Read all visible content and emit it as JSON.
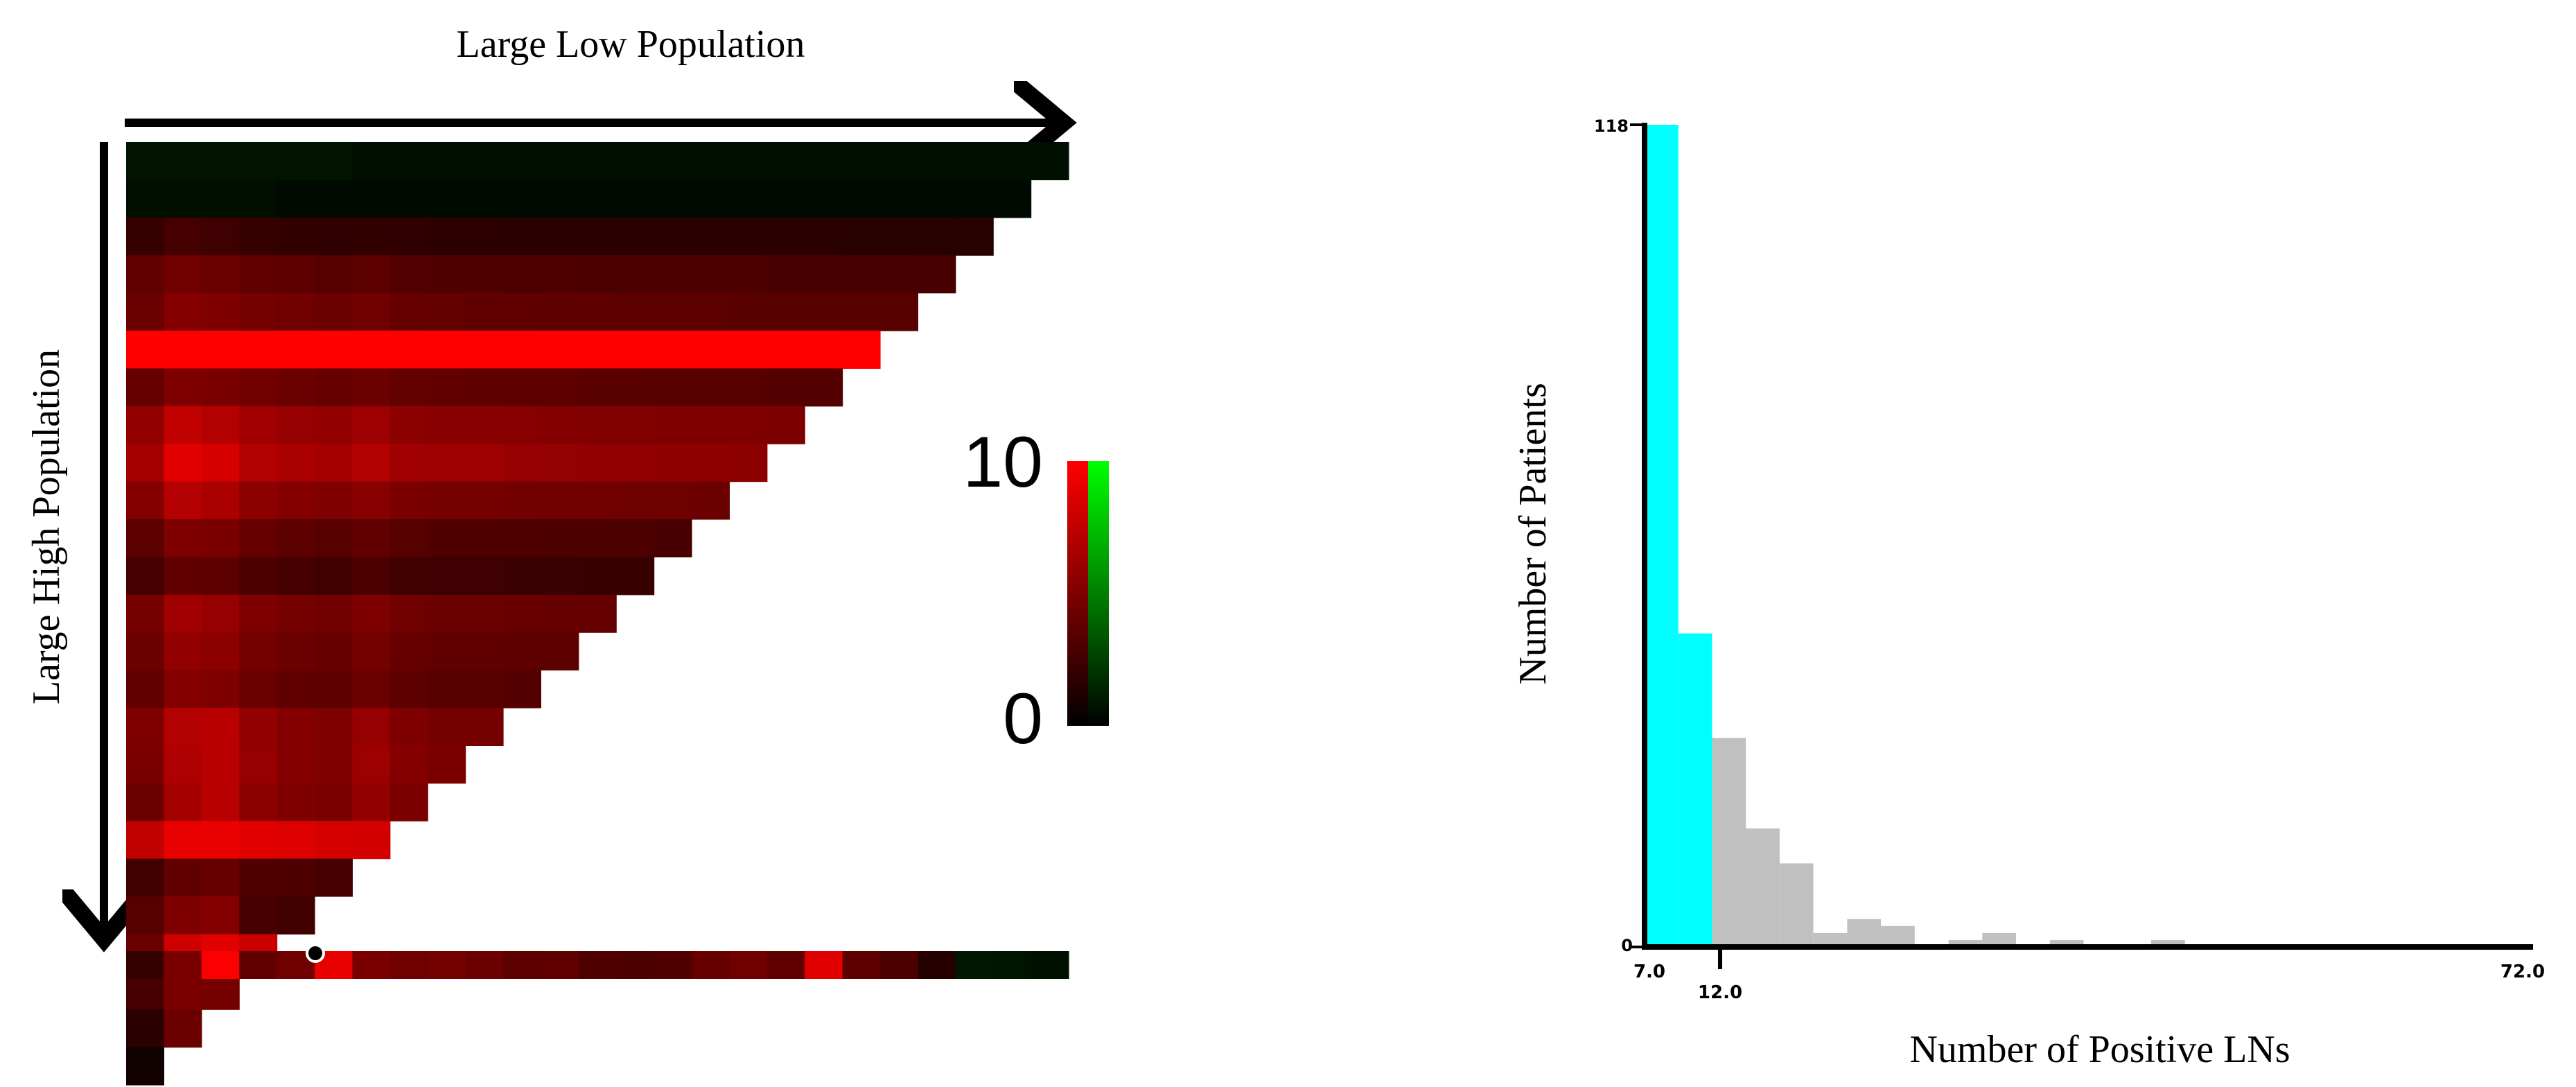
{
  "chart_data": [
    {
      "type": "heatmap",
      "title": "Large Low Population",
      "xlabel": "Large Low Population",
      "ylabel": "Large High Population",
      "colorbar": {
        "min_label": "0",
        "max_label": "10",
        "min": 0,
        "max": 10,
        "colors": [
          "#000000",
          "#ff0000",
          "#00ff00"
        ]
      },
      "rows": [
        [
          0.4,
          0.4,
          0.4,
          0.4,
          0.4,
          0.4,
          0.3,
          0.3,
          0.3,
          0.3,
          0.3,
          0.3,
          0.3,
          0.3,
          0.3,
          0.3,
          0.3,
          0.3,
          0.3,
          0.3,
          0.3,
          0.3,
          0.3,
          0.3,
          0.3
        ],
        [
          0.3,
          0.3,
          0.3,
          0.3,
          0.2,
          0.2,
          0.2,
          0.2,
          0.2,
          0.2,
          0.2,
          0.2,
          0.2,
          0.2,
          0.2,
          0.2,
          0.2,
          0.2,
          0.2,
          0.2,
          0.2,
          0.2,
          0.2,
          0.2
        ],
        [
          1.6,
          2.2,
          1.9,
          1.6,
          1.5,
          1.4,
          1.5,
          1.4,
          1.3,
          1.3,
          1.2,
          1.2,
          1.2,
          1.2,
          1.2,
          1.2,
          1.2,
          1.2,
          1.2,
          1.1,
          1.1,
          1.1,
          1.1
        ],
        [
          3.2,
          3.8,
          3.6,
          3.2,
          3.0,
          2.8,
          3.0,
          2.7,
          2.6,
          2.6,
          2.5,
          2.5,
          2.4,
          2.4,
          2.4,
          2.4,
          2.4,
          2.3,
          2.3,
          2.3,
          2.3,
          2.2
        ],
        [
          3.6,
          4.6,
          4.4,
          4.0,
          3.8,
          3.6,
          3.8,
          3.4,
          3.3,
          3.2,
          3.2,
          3.1,
          3.1,
          3.0,
          3.0,
          3.0,
          2.9,
          2.9,
          2.9,
          2.8,
          2.8
        ],
        [
          10,
          10,
          10,
          10,
          10,
          10,
          10,
          10,
          10,
          10,
          10,
          10,
          10,
          10,
          10,
          10,
          10,
          10,
          10,
          10
        ],
        [
          3.4,
          4.4,
          4.2,
          3.8,
          3.6,
          3.4,
          3.6,
          3.3,
          3.2,
          3.1,
          3.0,
          3.0,
          2.9,
          2.9,
          2.8,
          2.8,
          2.8,
          2.7,
          2.7
        ],
        [
          5.2,
          7.2,
          6.6,
          5.8,
          5.4,
          5.2,
          5.6,
          5.0,
          4.8,
          4.8,
          4.7,
          4.6,
          4.5,
          4.5,
          4.4,
          4.4,
          4.4,
          4.3
        ],
        [
          6.0,
          8.6,
          8.2,
          6.6,
          6.2,
          6.0,
          6.6,
          5.8,
          5.6,
          5.6,
          5.4,
          5.3,
          5.2,
          5.2,
          5.1,
          5.1,
          5.0
        ],
        [
          4.6,
          6.6,
          6.2,
          5.0,
          4.6,
          4.4,
          4.8,
          4.2,
          4.0,
          4.0,
          3.9,
          3.8,
          3.8,
          3.7,
          3.7,
          3.6
        ],
        [
          3.0,
          4.4,
          4.2,
          3.4,
          3.0,
          2.8,
          3.2,
          2.8,
          2.6,
          2.6,
          2.5,
          2.4,
          2.4,
          2.4,
          2.3
        ],
        [
          2.2,
          3.2,
          3.0,
          2.4,
          2.2,
          2.0,
          2.4,
          2.0,
          1.9,
          1.9,
          1.8,
          1.8,
          1.7,
          1.7
        ],
        [
          4.0,
          5.8,
          5.4,
          4.4,
          4.0,
          3.8,
          4.4,
          3.8,
          3.6,
          3.6,
          3.5,
          3.4,
          3.4
        ],
        [
          3.6,
          5.2,
          5.0,
          4.0,
          3.6,
          3.4,
          4.0,
          3.4,
          3.2,
          3.2,
          3.1,
          3.0
        ],
        [
          3.2,
          4.6,
          4.4,
          3.6,
          3.2,
          3.0,
          3.6,
          3.0,
          2.8,
          2.8,
          2.7
        ],
        [
          4.4,
          6.6,
          6.8,
          5.2,
          4.6,
          4.4,
          5.4,
          4.4,
          4.0,
          4.0
        ],
        [
          4.2,
          6.4,
          6.8,
          5.4,
          4.6,
          4.4,
          5.6,
          4.6,
          4.2
        ],
        [
          3.6,
          6.0,
          6.8,
          5.0,
          4.4,
          4.2,
          5.2,
          4.2
        ],
        [
          7.2,
          9.0,
          9.0,
          8.6,
          8.4,
          8.2,
          8.0
        ],
        [
          2.0,
          3.2,
          3.4,
          2.6,
          2.4,
          2.2
        ],
        [
          2.8,
          4.4,
          4.6,
          2.2,
          2.0
        ],
        [
          3.6,
          7.8,
          8.6,
          7.6
        ],
        [
          2.2,
          4.2,
          4.0
        ],
        [
          1.2,
          3.6
        ],
        [
          0.4
        ]
      ],
      "bottom_strip": [
        1.6,
        4.2,
        9.8,
        3.2,
        3.8,
        9.0,
        4.2,
        3.8,
        4.0,
        3.6,
        3.0,
        3.2,
        2.6,
        2.4,
        2.6,
        3.4,
        3.8,
        3.2,
        8.6,
        3.0,
        2.4,
        1.0,
        0.3,
        0.2,
        0.2
      ]
    },
    {
      "type": "bar",
      "xlabel": "Number of  Positive LNs",
      "ylabel": "Number of Patients",
      "xlim": [
        7.0,
        72.0
      ],
      "ylim": [
        0,
        118
      ],
      "x_tick_labels": [
        "7.0",
        "12.0",
        "72.0"
      ],
      "y_tick_labels": [
        "0",
        "118"
      ],
      "threshold": 12.0,
      "colors": {
        "below_threshold": "#00ffff",
        "above_threshold": "#c0c0c0"
      },
      "bin_width": 2.5,
      "bin_starts": [
        7.0,
        9.5,
        12.0,
        14.5,
        17.0,
        19.5,
        22.0,
        24.5,
        27.0,
        29.5,
        32.0,
        34.5,
        37.0,
        39.5,
        42.0,
        44.5
      ],
      "values": [
        118,
        45,
        30,
        17,
        12,
        2,
        4,
        3,
        0,
        1,
        2,
        0,
        1,
        0,
        0,
        1
      ]
    }
  ]
}
